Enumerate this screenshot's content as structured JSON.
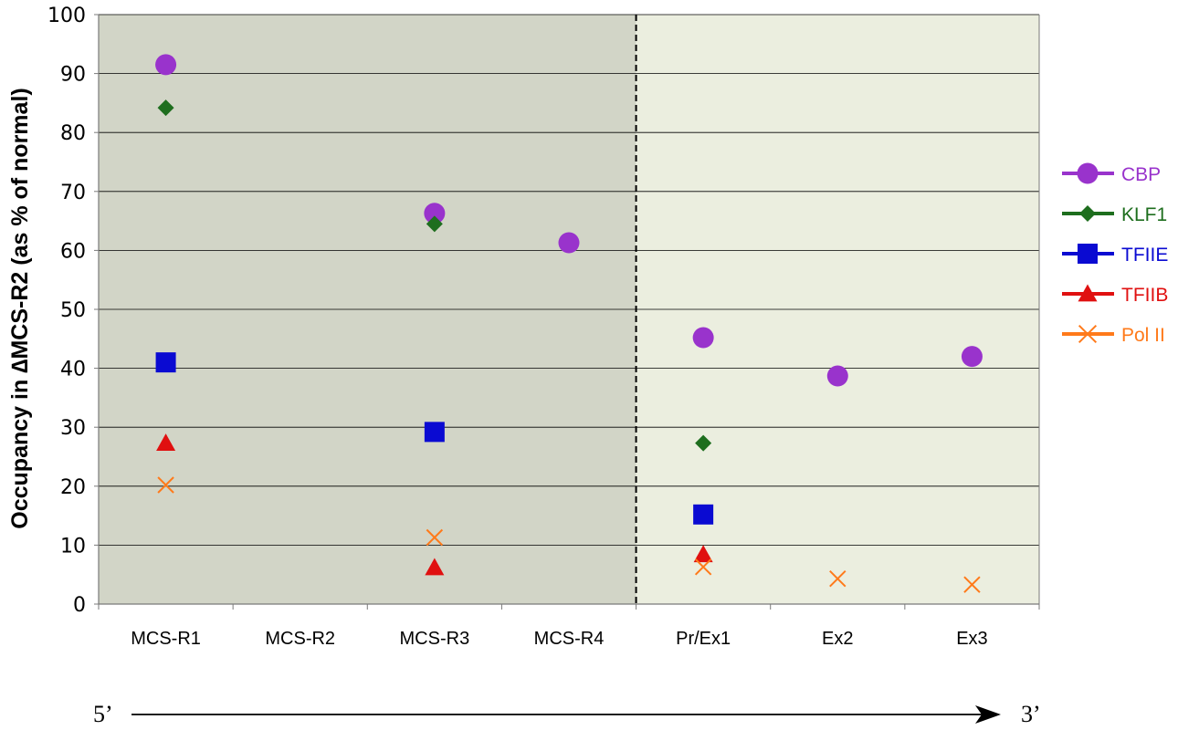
{
  "chart_data": {
    "type": "scatter",
    "title": "",
    "xlabel": "",
    "ylabel": "Occupancy in ∆MCS-R2 (as % of normal)",
    "ylim": [
      0,
      100
    ],
    "yticks": [
      0,
      10,
      20,
      30,
      40,
      50,
      60,
      70,
      80,
      90,
      100
    ],
    "categories": [
      "MCS-R1",
      "MCS-R2",
      "MCS-R3",
      "MCS-R4",
      "Pr/Ex1",
      "Ex2",
      "Ex3"
    ],
    "category_colors": [
      "#000000",
      "#8c8c8c",
      "#000000",
      "#000000",
      "#000000",
      "#000000",
      "#000000"
    ],
    "grid": "horizontal",
    "legend_position": "right",
    "regions": [
      {
        "from": "MCS-R1",
        "to": "MCS-R4",
        "color": "#d2d5c7"
      },
      {
        "from": "Pr/Ex1",
        "to": "Ex3",
        "color": "#ebeedf"
      }
    ],
    "divider_after": "MCS-R4",
    "series": [
      {
        "name": "CBP",
        "marker": "circle",
        "color": "#9933cc",
        "values": [
          91.5,
          null,
          66.3,
          61.3,
          45.2,
          38.7,
          42.0
        ]
      },
      {
        "name": "KLF1",
        "marker": "diamond",
        "color": "#1e6e1e",
        "values": [
          84.2,
          null,
          64.5,
          null,
          27.3,
          null,
          null
        ]
      },
      {
        "name": "TFIIE",
        "marker": "square",
        "color": "#0a0ad2",
        "values": [
          41.0,
          null,
          29.2,
          null,
          15.2,
          null,
          null
        ]
      },
      {
        "name": "TFIIB",
        "marker": "triangle",
        "color": "#e01010",
        "values": [
          27.3,
          null,
          6.2,
          null,
          8.4,
          null,
          null
        ]
      },
      {
        "name": "Pol II",
        "marker": "x",
        "color": "#ff7a1a",
        "values": [
          20.2,
          null,
          11.3,
          null,
          6.3,
          4.3,
          3.3
        ]
      }
    ],
    "axis_annotation": {
      "start": "5’",
      "end": "3’"
    }
  }
}
